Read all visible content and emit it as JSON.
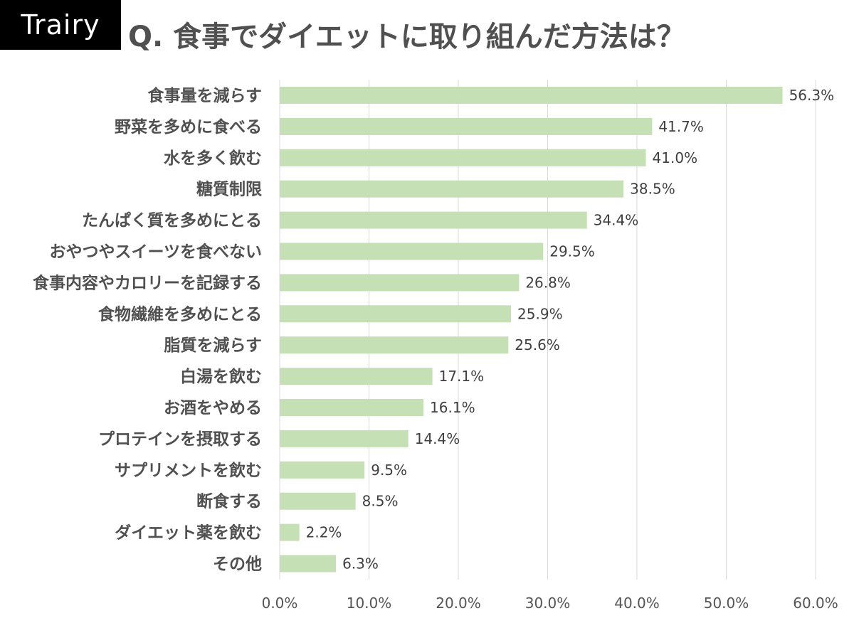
{
  "brand": {
    "logo_text": "Trairy"
  },
  "chart_data": {
    "type": "bar",
    "orientation": "horizontal",
    "title": "Q. 食事でダイエットに取り組んだ方法は？",
    "categories": [
      "食事量を減らす",
      "野菜を多めに食べる",
      "水を多く飲む",
      "糖質制限",
      "たんぱく質を多めにとる",
      "おやつやスイーツを食べない",
      "食事内容やカロリーを記録する",
      "食物繊維を多めにとる",
      "脂質を減らす",
      "白湯を飲む",
      "お酒をやめる",
      "プロテインを摂取する",
      "サプリメントを飲む",
      "断食する",
      "ダイエット薬を飲む",
      "その他"
    ],
    "values": [
      56.3,
      41.7,
      41.0,
      38.5,
      34.4,
      29.5,
      26.8,
      25.9,
      25.6,
      17.1,
      16.1,
      14.4,
      9.5,
      8.5,
      2.2,
      6.3
    ],
    "value_labels": [
      "56.3%",
      "41.7%",
      "41.0%",
      "38.5%",
      "34.4%",
      "29.5%",
      "26.8%",
      "25.9%",
      "25.6%",
      "17.1%",
      "16.1%",
      "14.4%",
      "9.5%",
      "8.5%",
      "2.2%",
      "6.3%"
    ],
    "xlim": [
      0,
      60
    ],
    "xticks": [
      0,
      10,
      20,
      30,
      40,
      50,
      60
    ],
    "xtick_labels": [
      "0.0%",
      "10.0%",
      "20.0%",
      "30.0%",
      "40.0%",
      "50.0%",
      "60.0%"
    ],
    "grid": "vertical",
    "legend": "none",
    "bar_color": "#c5e0b4",
    "grid_color": "#d9d9d9"
  }
}
